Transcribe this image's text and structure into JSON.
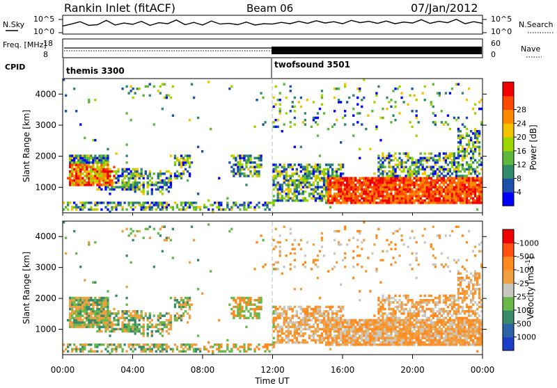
{
  "header": {
    "station": "Rankin Inlet (fitACF)",
    "beam": "Beam 06",
    "date": "07/Jan/2012"
  },
  "chart_data": [
    {
      "type": "line",
      "name": "noise-panel",
      "left_label": "N.Sky",
      "right_label": "N.Search",
      "left_ticks": [
        "10^5",
        "10^0"
      ],
      "right_ticks": [
        "10^5",
        "10^0"
      ],
      "x": [
        0,
        0.5,
        1,
        1.5,
        2,
        2.5,
        3,
        3.5,
        4,
        4.5,
        5,
        5.5,
        6,
        6.5,
        7,
        7.5,
        8,
        8.5,
        9,
        9.5,
        10,
        10.5,
        11,
        11.5,
        12,
        12.5,
        13,
        13.5,
        14,
        14.5,
        15,
        15.5,
        16,
        16.5,
        17,
        17.5,
        18,
        18.5,
        19,
        19.5,
        20,
        20.5,
        21,
        21.5,
        22,
        22.5,
        23,
        23.5,
        24
      ],
      "series": [
        {
          "values": [
            2.2,
            2.8,
            3.5,
            2.4,
            2.6,
            3.9,
            2.5,
            3.1,
            2.7,
            3.6,
            2.4,
            3.2,
            2.9,
            4.0,
            2.6,
            3.3,
            2.5,
            3.7,
            2.8,
            3.0,
            2.6,
            3.4,
            2.5,
            2.9,
            2.8,
            3.3,
            2.9,
            3.6,
            3.0,
            3.8,
            3.1,
            3.5,
            2.9,
            3.9,
            3.2,
            3.6,
            3.0,
            3.7,
            2.9,
            3.4,
            3.1,
            4.1,
            3.0,
            3.6,
            3.2,
            4.2,
            2.9,
            3.5,
            3.0
          ]
        }
      ]
    },
    {
      "type": "line",
      "name": "freq-panel",
      "left_label": "Freq. [MHz]",
      "right_label": "Nave",
      "left_ticks": [
        "18",
        "8"
      ],
      "right_ticks": [
        "60",
        "0"
      ],
      "cpid_label": "CPID",
      "cpid_segments": [
        {
          "start": 0,
          "label": "themis 3300"
        },
        {
          "start": 12,
          "label": "twofsound 3501"
        }
      ]
    },
    {
      "type": "heatmap",
      "name": "power-panel",
      "ylabel": "Slant Range [km]",
      "yticks": [
        1000,
        2000,
        3000,
        4000
      ],
      "ylim": [
        180,
        4500
      ],
      "xlim": [
        0,
        24
      ],
      "colorbar": {
        "label": "Power [dB]",
        "ticks": [
          "4",
          "8",
          "12",
          "16",
          "20",
          "24",
          "28"
        ],
        "colors": [
          "#0000ff",
          "#1c50ac",
          "#2f8a6a",
          "#5db83b",
          "#9ed600",
          "#f2c400",
          "#ff8a00",
          "#ff4800",
          "#f00000"
        ]
      }
    },
    {
      "type": "heatmap",
      "name": "velocity-panel",
      "ylabel": "Slant Range [km]",
      "yticks": [
        1000,
        2000,
        3000,
        4000
      ],
      "ylim": [
        180,
        4500
      ],
      "xlim": [
        0,
        24
      ],
      "xlabel": "Time UT",
      "xticks": [
        "00:00",
        "04:00",
        "08:00",
        "12:00",
        "16:00",
        "20:00",
        "00:00"
      ],
      "colorbar": {
        "label": "Velocity [m s^-1]",
        "ticks": [
          "1000",
          "500",
          "100",
          "25",
          "-25",
          "-100",
          "-500",
          "-1000"
        ],
        "colors": [
          "#1d3ec8",
          "#2c64a6",
          "#3a8a6a",
          "#68b84a",
          "#c8c8c0",
          "#f0a040",
          "#ff8a20",
          "#ff5010",
          "#f00000"
        ]
      }
    }
  ]
}
